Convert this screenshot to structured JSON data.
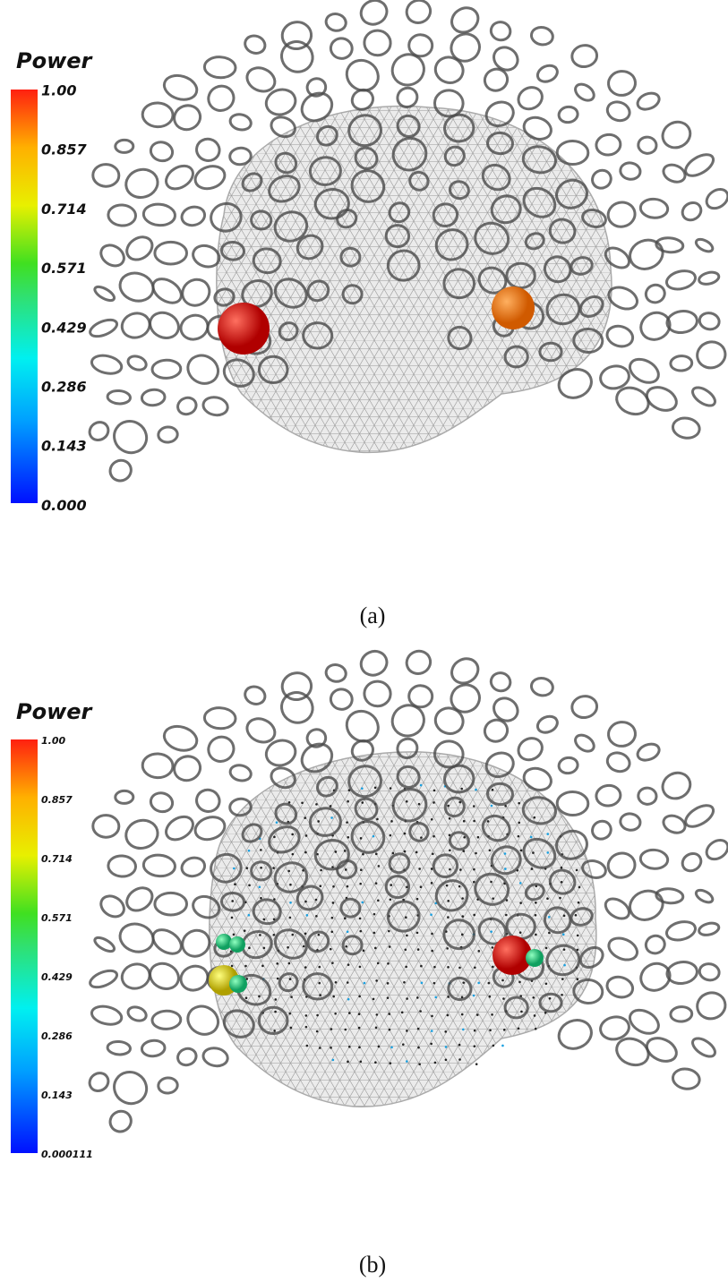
{
  "panels": [
    {
      "caption": "(a)",
      "colorbar": {
        "title": "Power",
        "ticks": [
          "1.00",
          "0.857",
          "0.714",
          "0.571",
          "0.429",
          "0.286",
          "0.143",
          "0.000"
        ]
      }
    },
    {
      "caption": "(b)",
      "colorbar": {
        "title": "Power",
        "ticks": [
          "1.00",
          "0.857",
          "0.714",
          "0.571",
          "0.429",
          "0.286",
          "0.143",
          "0.000111"
        ]
      }
    }
  ]
}
